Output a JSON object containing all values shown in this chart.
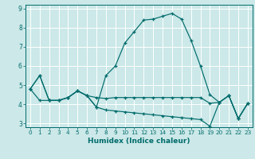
{
  "title": "",
  "xlabel": "Humidex (Indice chaleur)",
  "ylabel": "",
  "background_color": "#cce8e8",
  "grid_color": "#ffffff",
  "line_color": "#006b6b",
  "xlim": [
    -0.5,
    23.5
  ],
  "ylim": [
    2.8,
    9.2
  ],
  "yticks": [
    3,
    4,
    5,
    6,
    7,
    8,
    9
  ],
  "xticks": [
    0,
    1,
    2,
    3,
    4,
    5,
    6,
    7,
    8,
    9,
    10,
    11,
    12,
    13,
    14,
    15,
    16,
    17,
    18,
    19,
    20,
    21,
    22,
    23
  ],
  "series": [
    [
      4.8,
      5.5,
      4.2,
      4.2,
      4.35,
      4.7,
      4.45,
      3.85,
      5.5,
      6.0,
      7.2,
      7.8,
      8.4,
      8.45,
      8.6,
      8.75,
      8.45,
      7.35,
      6.0,
      4.5,
      4.1,
      4.45,
      3.25,
      4.05
    ],
    [
      4.8,
      5.5,
      4.2,
      4.2,
      4.35,
      4.7,
      4.45,
      4.35,
      4.3,
      4.35,
      4.35,
      4.35,
      4.35,
      4.35,
      4.35,
      4.35,
      4.35,
      4.35,
      4.35,
      4.05,
      4.1,
      4.45,
      3.25,
      4.05
    ],
    [
      4.8,
      4.2,
      4.2,
      4.2,
      4.35,
      4.7,
      4.45,
      3.85,
      3.7,
      3.65,
      3.6,
      3.55,
      3.5,
      3.45,
      3.4,
      3.35,
      3.3,
      3.25,
      3.2,
      2.85,
      4.1,
      4.45,
      3.25,
      4.05
    ]
  ]
}
